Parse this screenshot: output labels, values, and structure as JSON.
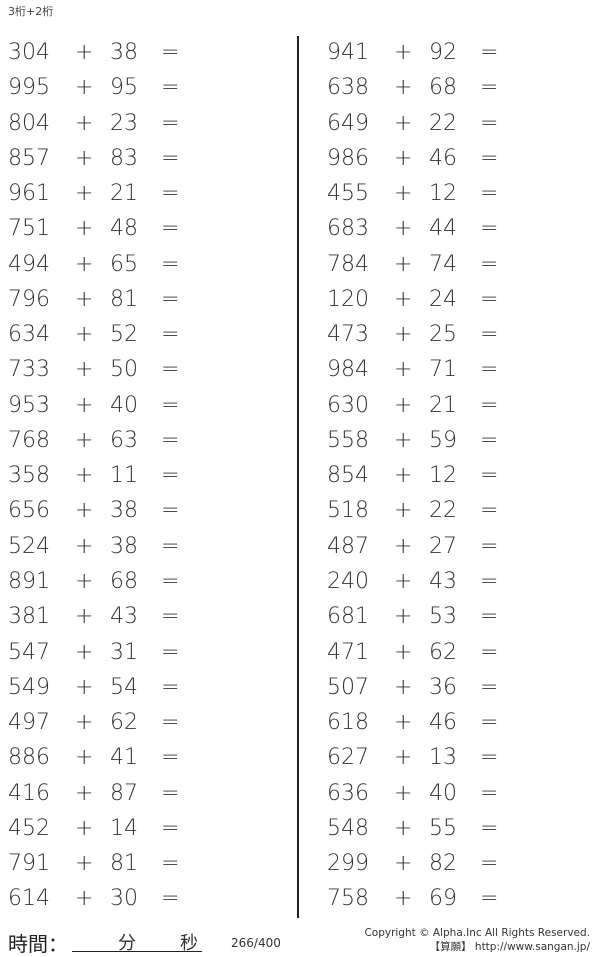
{
  "title": "3桁+2桁",
  "operator": "+",
  "equals": "=",
  "left": [
    [
      "304",
      "38"
    ],
    [
      "995",
      "95"
    ],
    [
      "804",
      "23"
    ],
    [
      "857",
      "83"
    ],
    [
      "961",
      "21"
    ],
    [
      "751",
      "48"
    ],
    [
      "494",
      "65"
    ],
    [
      "796",
      "81"
    ],
    [
      "634",
      "52"
    ],
    [
      "733",
      "50"
    ],
    [
      "953",
      "40"
    ],
    [
      "768",
      "63"
    ],
    [
      "358",
      "11"
    ],
    [
      "656",
      "38"
    ],
    [
      "524",
      "38"
    ],
    [
      "891",
      "68"
    ],
    [
      "381",
      "43"
    ],
    [
      "547",
      "31"
    ],
    [
      "549",
      "54"
    ],
    [
      "497",
      "62"
    ],
    [
      "886",
      "41"
    ],
    [
      "416",
      "87"
    ],
    [
      "452",
      "14"
    ],
    [
      "791",
      "81"
    ],
    [
      "614",
      "30"
    ]
  ],
  "right": [
    [
      "941",
      "92"
    ],
    [
      "638",
      "68"
    ],
    [
      "649",
      "22"
    ],
    [
      "986",
      "46"
    ],
    [
      "455",
      "12"
    ],
    [
      "683",
      "44"
    ],
    [
      "784",
      "74"
    ],
    [
      "120",
      "24"
    ],
    [
      "473",
      "25"
    ],
    [
      "984",
      "71"
    ],
    [
      "630",
      "21"
    ],
    [
      "558",
      "59"
    ],
    [
      "854",
      "12"
    ],
    [
      "518",
      "22"
    ],
    [
      "487",
      "27"
    ],
    [
      "240",
      "43"
    ],
    [
      "681",
      "53"
    ],
    [
      "471",
      "62"
    ],
    [
      "507",
      "36"
    ],
    [
      "618",
      "46"
    ],
    [
      "627",
      "13"
    ],
    [
      "636",
      "40"
    ],
    [
      "548",
      "55"
    ],
    [
      "299",
      "82"
    ],
    [
      "758",
      "69"
    ]
  ],
  "footer": {
    "time_label": "時間：",
    "minutes": "分",
    "seconds": "秒",
    "page": "266/400",
    "copyright": "Copyright © Alpha.Inc All Rights Reserved.",
    "site": "【算願】 http://www.sangan.jp/"
  }
}
